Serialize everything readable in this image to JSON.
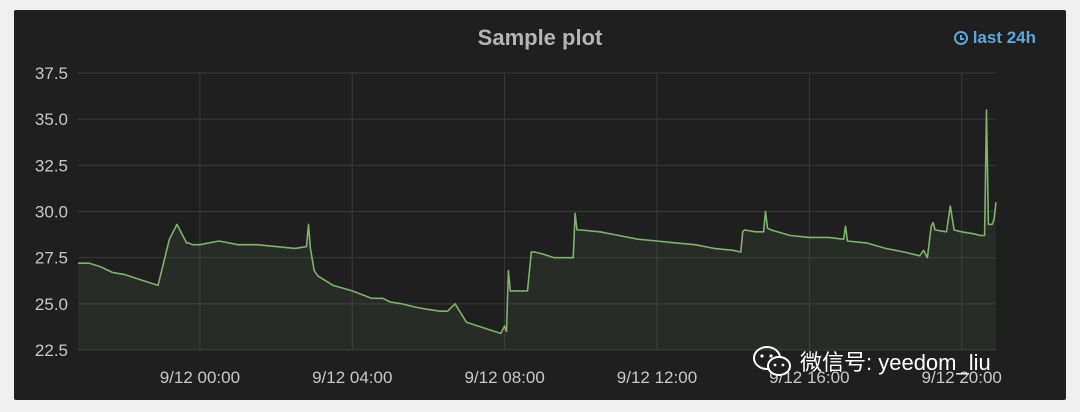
{
  "panel": {
    "title": "Sample plot",
    "time_range_label": "last 24h"
  },
  "watermark": {
    "text": "微信号: yeedom_liu"
  },
  "colors": {
    "background": "#1f1f20",
    "grid": "#3a3a3c",
    "line": "#7eb26d",
    "fill": "#7eb26d",
    "title": "#b5b5b5",
    "tick": "#c8c8c8",
    "time_label": "#5aa8dd"
  },
  "chart_data": {
    "type": "area",
    "title": "Sample plot",
    "xlabel": "",
    "ylabel": "",
    "x_unit": "hours relative to 9/12 00:00",
    "xlim": [
      -3.2,
      20.9
    ],
    "ylim": [
      22.5,
      37.5
    ],
    "y_ticks": [
      22.5,
      25.0,
      27.5,
      30.0,
      32.5,
      35.0,
      37.5
    ],
    "y_tick_labels": [
      "22.5",
      "25.0",
      "27.5",
      "30.0",
      "32.5",
      "35.0",
      "37.5"
    ],
    "x_ticks": [
      0,
      4,
      8,
      12,
      16,
      20
    ],
    "x_tick_labels": [
      "9/12 00:00",
      "9/12 04:00",
      "9/12 08:00",
      "9/12 12:00",
      "9/12 16:00",
      "9/12 20:00"
    ],
    "grid": true,
    "legend": "none",
    "series": [
      {
        "x": [
          -3.2,
          -2.9,
          -2.6,
          -2.3,
          -2.0,
          -1.7,
          -1.4,
          -1.1,
          -0.8,
          -0.6,
          -0.4,
          -0.35,
          -0.3,
          -0.2,
          -0.1,
          0.0,
          0.5,
          1.0,
          1.5,
          2.0,
          2.5,
          2.8,
          2.85,
          2.9,
          3.0,
          3.1,
          3.5,
          4.0,
          4.5,
          4.8,
          5.0,
          5.3,
          5.7,
          6.0,
          6.3,
          6.5,
          6.7,
          7.0,
          7.3,
          7.6,
          7.9,
          8.0,
          8.05,
          8.1,
          8.15,
          8.25,
          8.4,
          8.6,
          8.7,
          8.75,
          8.8,
          9.0,
          9.3,
          9.6,
          9.8,
          9.85,
          9.9,
          10.0,
          10.5,
          11.0,
          11.5,
          12.0,
          12.5,
          13.0,
          13.5,
          14.0,
          14.2,
          14.25,
          14.3,
          14.6,
          14.8,
          14.85,
          14.9,
          15.0,
          15.5,
          16.0,
          16.5,
          16.9,
          16.95,
          17.0,
          17.5,
          18.0,
          18.5,
          18.9,
          19.0,
          19.1,
          19.2,
          19.25,
          19.3,
          19.6,
          19.7,
          19.8,
          20.0,
          20.3,
          20.5,
          20.6,
          20.65,
          20.7,
          20.8,
          20.85,
          20.9
        ],
        "y": [
          27.2,
          27.2,
          27.0,
          26.7,
          26.6,
          26.4,
          26.2,
          26.0,
          28.5,
          29.3,
          28.5,
          28.3,
          28.3,
          28.2,
          28.2,
          28.2,
          28.4,
          28.2,
          28.2,
          28.1,
          28.0,
          28.1,
          29.3,
          28.0,
          26.8,
          26.5,
          26.0,
          25.7,
          25.3,
          25.3,
          25.1,
          25.0,
          24.8,
          24.7,
          24.6,
          24.6,
          25.0,
          24.0,
          23.8,
          23.6,
          23.4,
          23.8,
          23.5,
          26.8,
          25.7,
          25.7,
          25.7,
          25.7,
          27.8,
          27.8,
          27.8,
          27.7,
          27.5,
          27.5,
          27.5,
          29.9,
          29.0,
          29.0,
          28.9,
          28.7,
          28.5,
          28.4,
          28.3,
          28.2,
          28.0,
          27.9,
          27.8,
          28.9,
          29.0,
          28.9,
          28.9,
          30.0,
          29.1,
          29.0,
          28.7,
          28.6,
          28.6,
          28.5,
          29.2,
          28.4,
          28.3,
          28.0,
          27.8,
          27.6,
          27.9,
          27.5,
          29.2,
          29.4,
          29.0,
          28.9,
          30.3,
          29.0,
          28.9,
          28.8,
          28.7,
          28.7,
          35.5,
          29.3,
          29.3,
          29.6,
          30.5
        ]
      }
    ]
  }
}
